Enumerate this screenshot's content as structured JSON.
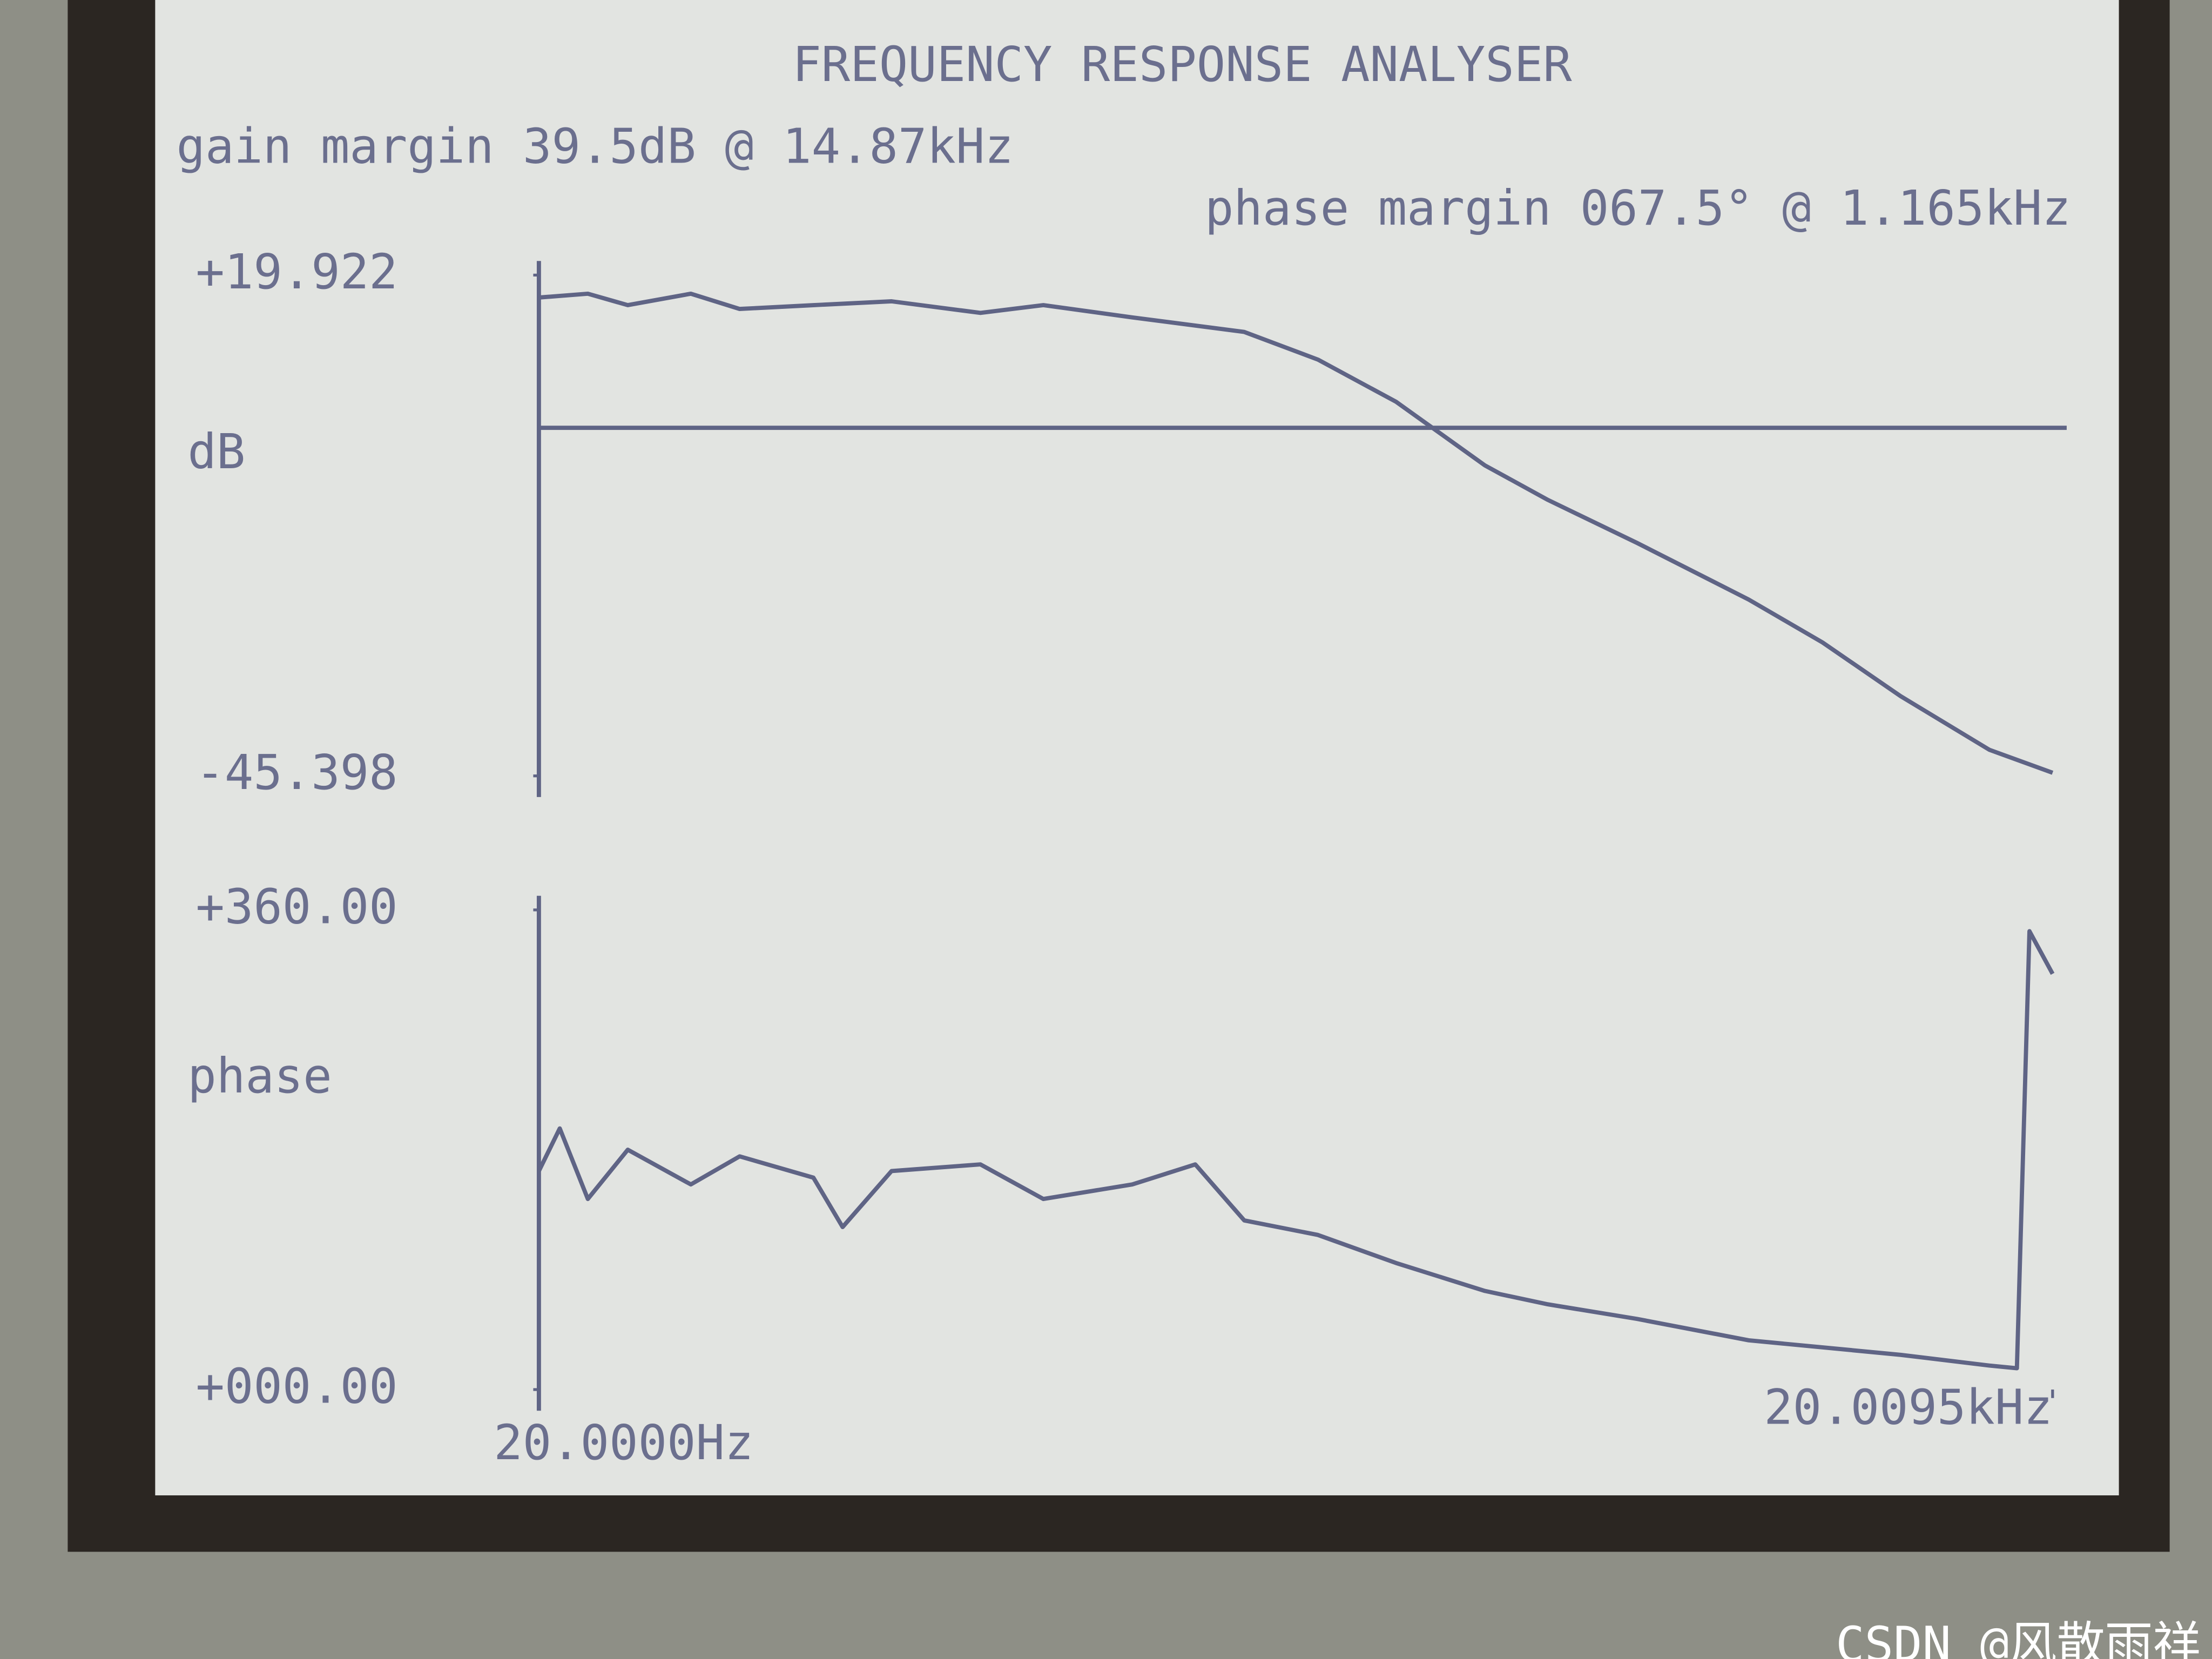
{
  "header": {
    "title": "FREQUENCY RESPONSE ANALYSER",
    "gain_margin": "gain margin 39.5dB @ 14.87kHz",
    "phase_margin": "phase margin 067.5° @ 1.165kHz"
  },
  "watermark": "CSDN @风散雨祥",
  "chart_data": [
    {
      "type": "line",
      "y_label": "dB",
      "log_x": true,
      "color": "#5f6485",
      "x": [
        20,
        25,
        30,
        40,
        50,
        70,
        100,
        150,
        200,
        300,
        500,
        700,
        1000,
        1500,
        2000,
        3000,
        5000,
        7000,
        10000,
        15000,
        20009.5
      ],
      "values": [
        17,
        17.5,
        16,
        17.5,
        15.5,
        16,
        16.5,
        15,
        16,
        14.4,
        12.5,
        8.9,
        3.4,
        -4.9,
        -9.4,
        -15,
        -22.4,
        -28,
        -35,
        -42,
        -45
      ],
      "xlim": [
        20,
        20009.5
      ],
      "ylim": [
        -45.398,
        19.922
      ],
      "yticks": [
        {
          "value": 19.922,
          "label": "+19.922"
        },
        {
          "value": -45.398,
          "label": "-45.398"
        }
      ],
      "reference_line": 0
    },
    {
      "type": "line",
      "y_label": "phase",
      "log_x": true,
      "color": "#5f6485",
      "x": [
        20,
        22,
        25,
        30,
        40,
        50,
        70,
        80,
        100,
        150,
        200,
        300,
        400,
        500,
        700,
        1000,
        1500,
        2000,
        3000,
        5000,
        10000,
        15000,
        17000,
        18000,
        20009.5
      ],
      "values": [
        164,
        196,
        143,
        180,
        154,
        175,
        159,
        122,
        164,
        169,
        143,
        154,
        169,
        127,
        116,
        95,
        74,
        64,
        53,
        37,
        26,
        18,
        16,
        344,
        312
      ],
      "xlim": [
        20,
        20009.5
      ],
      "ylim": [
        0,
        360
      ],
      "xticks": [
        {
          "value": 20,
          "label": "20.0000Hz"
        },
        {
          "value": 20009.5,
          "label": "20.0095kHz"
        }
      ],
      "yticks": [
        {
          "value": 360,
          "label": "+360.00"
        },
        {
          "value": 0,
          "label": "+000.00"
        }
      ]
    }
  ]
}
